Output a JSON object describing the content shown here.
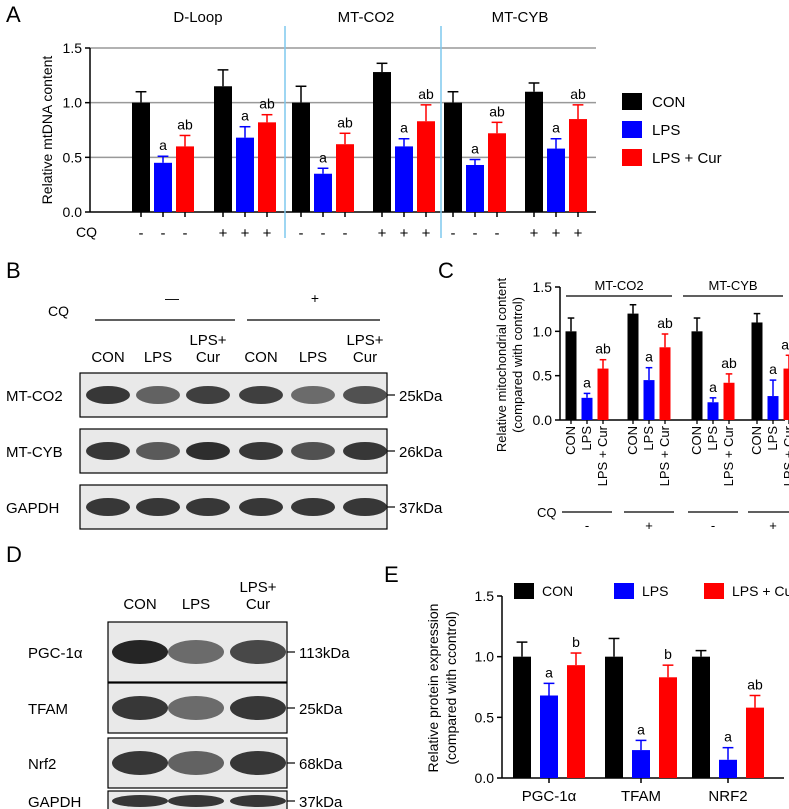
{
  "panel_letters": {
    "a": "A",
    "b": "B",
    "c": "C",
    "d": "D",
    "e": "E"
  },
  "colors": {
    "con": "#000000",
    "lps": "#0000ff",
    "cur": "#ff0000",
    "divider": "#7fc8ee",
    "grid": "#999999"
  },
  "chart_data": [
    {
      "panel": "A",
      "type": "bar",
      "ylabel": "Relative mtDNA content",
      "ylim": [
        0,
        1.5
      ],
      "yticks": [
        "0.0",
        "0.5",
        "1.0",
        "1.5"
      ],
      "grid": true,
      "genes": [
        "D-Loop",
        "MT-CO2",
        "MT-CYB"
      ],
      "legend": [
        "CON",
        "LPS",
        "LPS + Cur"
      ],
      "legend_position": "right",
      "cq_label": "CQ",
      "cq_row": [
        [
          "-",
          "-",
          "-",
          "+",
          "+",
          "+"
        ],
        [
          "-",
          "-",
          "-",
          "+",
          "+",
          "+"
        ],
        [
          "-",
          "-",
          "-",
          "+",
          "+",
          "+"
        ]
      ],
      "groups": [
        {
          "gene": "D-Loop",
          "cq": "-",
          "values": [
            1.0,
            0.45,
            0.6
          ],
          "errors": [
            0.1,
            0.06,
            0.1
          ],
          "labels": [
            "",
            "a",
            "ab"
          ]
        },
        {
          "gene": "D-Loop",
          "cq": "+",
          "values": [
            1.15,
            0.68,
            0.82
          ],
          "errors": [
            0.15,
            0.1,
            0.07
          ],
          "labels": [
            "",
            "a",
            "ab"
          ]
        },
        {
          "gene": "MT-CO2",
          "cq": "-",
          "values": [
            1.0,
            0.35,
            0.62
          ],
          "errors": [
            0.15,
            0.05,
            0.1
          ],
          "labels": [
            "",
            "a",
            "ab"
          ]
        },
        {
          "gene": "MT-CO2",
          "cq": "+",
          "values": [
            1.28,
            0.6,
            0.83
          ],
          "errors": [
            0.08,
            0.07,
            0.15
          ],
          "labels": [
            "",
            "a",
            "ab"
          ]
        },
        {
          "gene": "MT-CYB",
          "cq": "-",
          "values": [
            1.0,
            0.43,
            0.72
          ],
          "errors": [
            0.1,
            0.05,
            0.1
          ],
          "labels": [
            "",
            "a",
            "ab"
          ]
        },
        {
          "gene": "MT-CYB",
          "cq": "+",
          "values": [
            1.1,
            0.58,
            0.85
          ],
          "errors": [
            0.08,
            0.09,
            0.13
          ],
          "labels": [
            "",
            "a",
            "ab"
          ]
        }
      ]
    },
    {
      "panel": "C",
      "type": "bar",
      "ylabel_lines": [
        "Relative  mitochondrial content",
        "(compared with control)"
      ],
      "ylim": [
        0,
        1.5
      ],
      "yticks": [
        "0.0",
        "0.5",
        "1.0",
        "1.5"
      ],
      "genes": [
        "MT-CO2",
        "MT-CYB"
      ],
      "categories": [
        "CON",
        "LPS",
        "LPS + Cur"
      ],
      "cq_label": "CQ",
      "cq_row": [
        "-",
        "+",
        "-",
        "+"
      ],
      "groups": [
        {
          "gene": "MT-CO2",
          "cq": "-",
          "values": [
            1.0,
            0.25,
            0.58
          ],
          "errors": [
            0.15,
            0.05,
            0.1
          ],
          "labels": [
            "",
            "a",
            "ab"
          ]
        },
        {
          "gene": "MT-CO2",
          "cq": "+",
          "values": [
            1.2,
            0.45,
            0.82
          ],
          "errors": [
            0.1,
            0.14,
            0.15
          ],
          "labels": [
            "",
            "a",
            "ab"
          ]
        },
        {
          "gene": "MT-CYB",
          "cq": "-",
          "values": [
            1.0,
            0.2,
            0.42
          ],
          "errors": [
            0.15,
            0.05,
            0.1
          ],
          "labels": [
            "",
            "a",
            "ab"
          ]
        },
        {
          "gene": "MT-CYB",
          "cq": "+",
          "values": [
            1.1,
            0.27,
            0.58
          ],
          "errors": [
            0.1,
            0.18,
            0.15
          ],
          "labels": [
            "",
            "a",
            "ab"
          ]
        }
      ]
    },
    {
      "panel": "E",
      "type": "bar",
      "ylabel_lines": [
        "Relative protein expression",
        "(compared with ccontrol)"
      ],
      "ylim": [
        0,
        1.5
      ],
      "yticks": [
        "0.0",
        "0.5",
        "1.0",
        "1.5"
      ],
      "categories": [
        "PGC-1α",
        "TFAM",
        "NRF2"
      ],
      "legend": [
        "CON",
        "LPS",
        "LPS + Cur"
      ],
      "legend_position": "top",
      "groups": [
        {
          "gene": "PGC-1α",
          "values": [
            1.0,
            0.68,
            0.93
          ],
          "errors": [
            0.12,
            0.1,
            0.1
          ],
          "labels": [
            "",
            "a",
            "b"
          ]
        },
        {
          "gene": "TFAM",
          "values": [
            1.0,
            0.23,
            0.83
          ],
          "errors": [
            0.15,
            0.08,
            0.1
          ],
          "labels": [
            "",
            "a",
            "b"
          ]
        },
        {
          "gene": "NRF2",
          "values": [
            1.0,
            0.15,
            0.58
          ],
          "errors": [
            0.05,
            0.1,
            0.1
          ],
          "labels": [
            "",
            "a",
            "ab"
          ]
        }
      ]
    }
  ],
  "blot_b": {
    "cq_label": "CQ",
    "minus_label": "—",
    "plus_label": "+",
    "lanes": [
      "CON",
      "LPS",
      "LPS+|Cur",
      "CON",
      "LPS",
      "LPS+|Cur"
    ],
    "rows": [
      {
        "label": "MT-CO2",
        "size": "25kDa",
        "intensity": [
          0.85,
          0.6,
          0.8,
          0.8,
          0.55,
          0.7
        ]
      },
      {
        "label": "MT-CYB",
        "size": "26kDa",
        "intensity": [
          0.85,
          0.65,
          0.9,
          0.85,
          0.7,
          0.85
        ]
      },
      {
        "label": "GAPDH",
        "size": "37kDa",
        "intensity": [
          0.85,
          0.85,
          0.85,
          0.85,
          0.85,
          0.85
        ]
      }
    ]
  },
  "blot_d": {
    "lanes": [
      "CON",
      "LPS",
      "LPS+|Cur"
    ],
    "rows": [
      {
        "label": "PGC-1α",
        "size": "113kDa",
        "intensity": [
          0.95,
          0.55,
          0.75
        ]
      },
      {
        "label": "TFAM",
        "size": "25kDa",
        "intensity": [
          0.85,
          0.55,
          0.85
        ]
      },
      {
        "label": "Nrf2",
        "size": "68kDa",
        "intensity": [
          0.85,
          0.6,
          0.85
        ]
      },
      {
        "label": "GAPDH",
        "size": "37kDa",
        "intensity": [
          0.85,
          0.85,
          0.85
        ]
      }
    ]
  }
}
